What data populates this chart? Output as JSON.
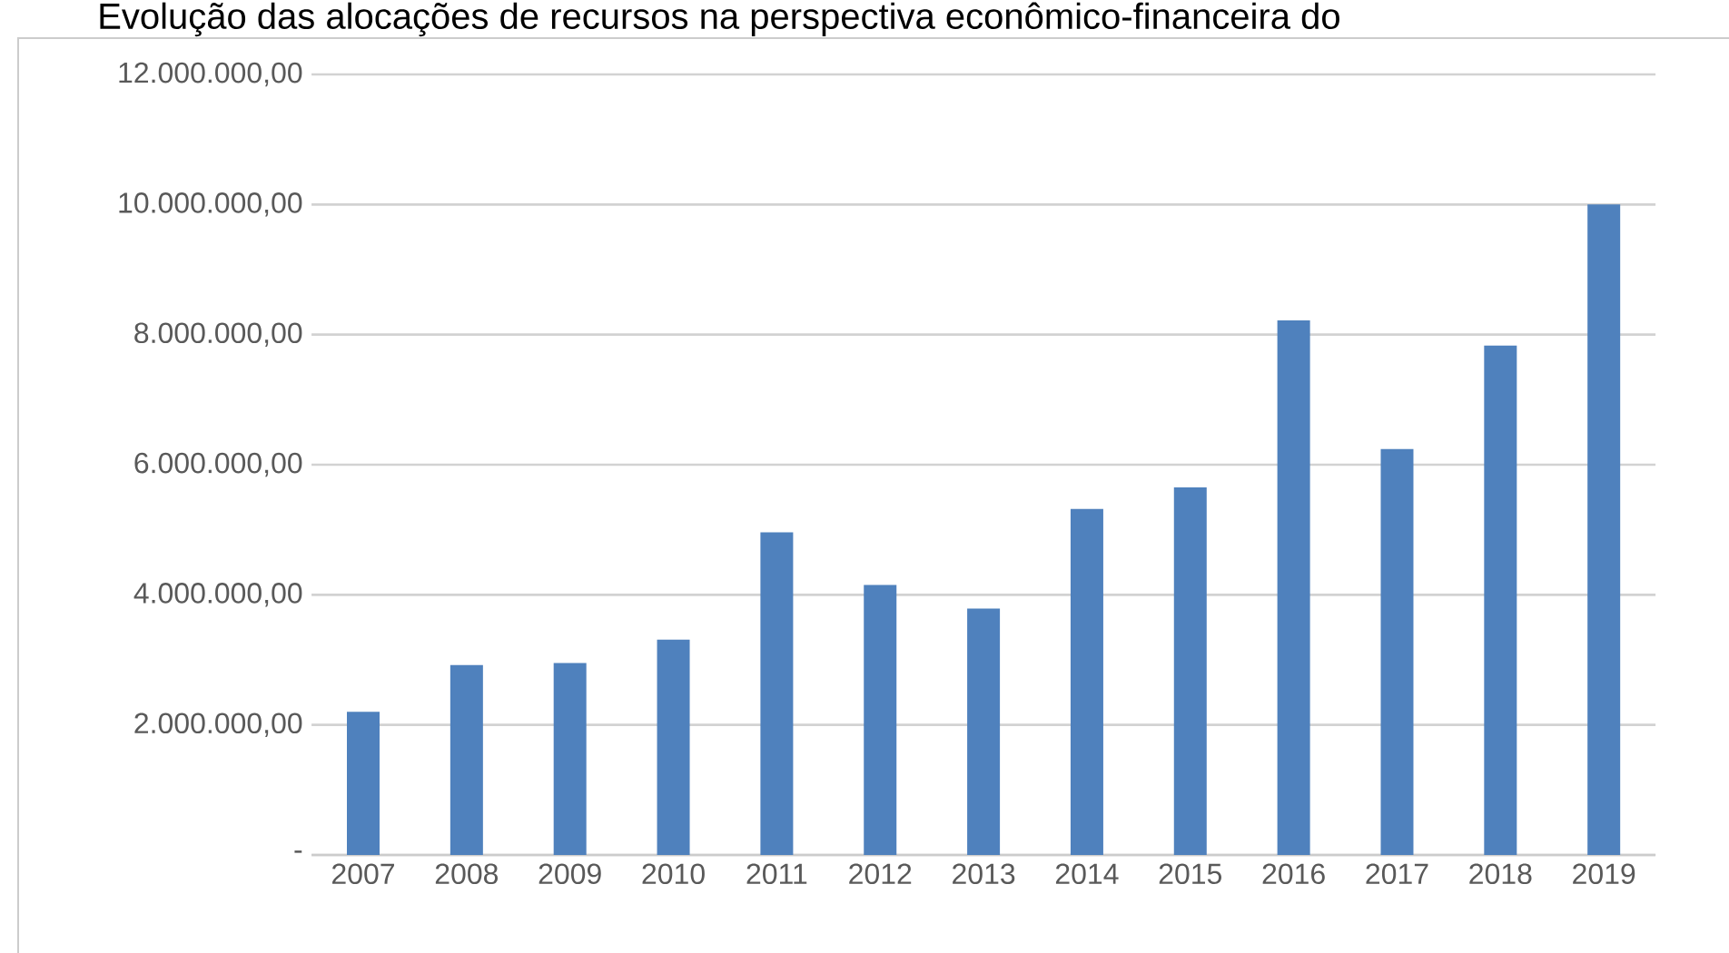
{
  "chart_data": {
    "type": "bar",
    "title": "Evolução das alocações de recursos na perspectiva econômico-financeira do",
    "categories": [
      "2007",
      "2008",
      "2009",
      "2010",
      "2011",
      "2012",
      "2013",
      "2014",
      "2015",
      "2016",
      "2017",
      "2018",
      "2019"
    ],
    "values": [
      2200000,
      2920000,
      2950000,
      3310000,
      4960000,
      4150000,
      3790000,
      5320000,
      5650000,
      8220000,
      6240000,
      7830000,
      10000000
    ],
    "color": "#4f81bd",
    "ylim": [
      0,
      12000000
    ],
    "yticks": [
      {
        "value": 0,
        "label": "-"
      },
      {
        "value": 2000000,
        "label": "2.000.000,00"
      },
      {
        "value": 4000000,
        "label": "4.000.000,00"
      },
      {
        "value": 6000000,
        "label": "6.000.000,00"
      },
      {
        "value": 8000000,
        "label": "8.000.000,00"
      },
      {
        "value": 10000000,
        "label": "10.000.000,00"
      },
      {
        "value": 12000000,
        "label": "12.000.000,00"
      }
    ],
    "grid": "y"
  }
}
